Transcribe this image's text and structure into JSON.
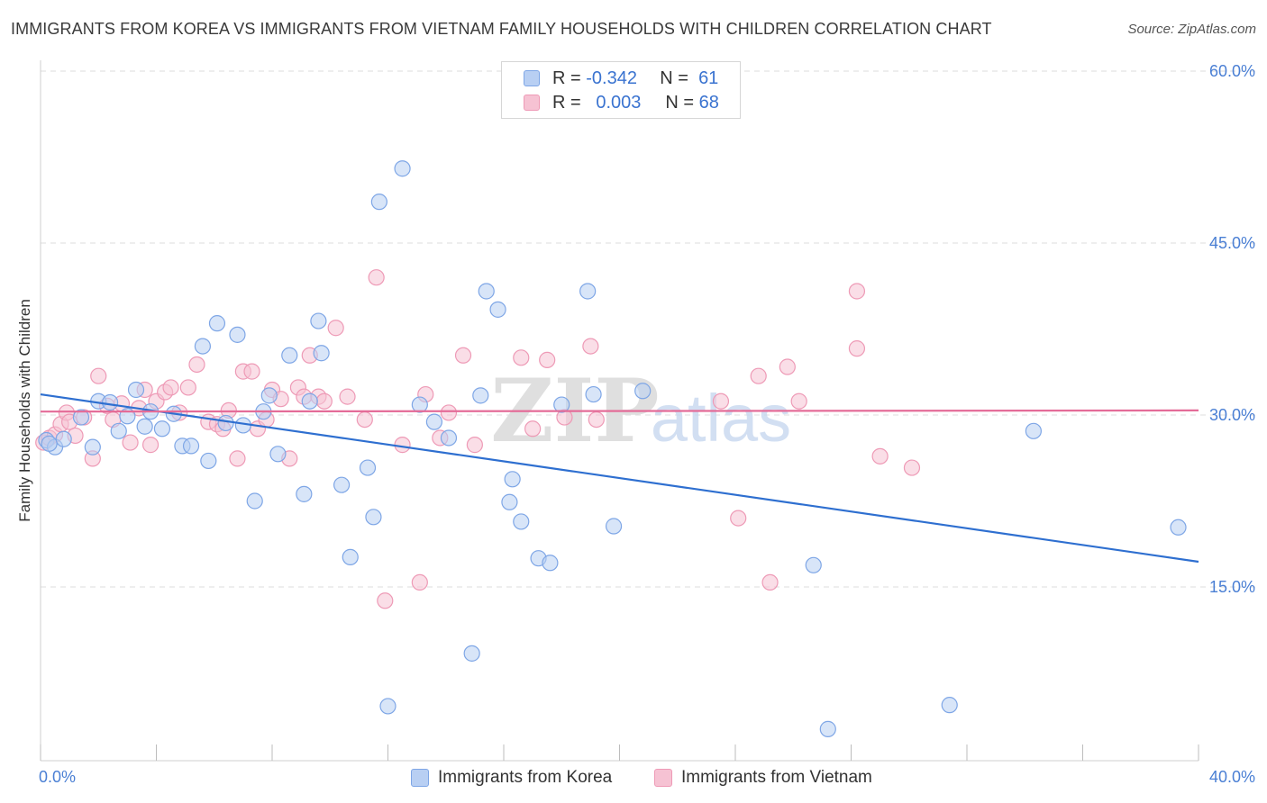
{
  "title": "IMMIGRANTS FROM KOREA VS IMMIGRANTS FROM VIETNAM FAMILY HOUSEHOLDS WITH CHILDREN CORRELATION CHART",
  "source": "Source: ZipAtlas.com",
  "watermark": {
    "zip": "ZIP",
    "atlas": "atlas"
  },
  "legend": {
    "korea": {
      "r_label": "R =",
      "r_value": "-0.342",
      "n_label": "N =",
      "n_value": "61"
    },
    "vietnam": {
      "r_label": "R =",
      "r_value": "0.003",
      "n_label": "N =",
      "n_value": "68"
    }
  },
  "bottom_legend": {
    "korea": "Immigrants from Korea",
    "vietnam": "Immigrants from Vietnam"
  },
  "colors": {
    "korea_fill": "#b8cff3",
    "korea_stroke": "#7ea6e6",
    "korea_line": "#2e6fd0",
    "vietnam_fill": "#f6c2d3",
    "vietnam_stroke": "#ee9ab6",
    "vietnam_line": "#e46c98",
    "tick_text": "#4a7fd4",
    "grid": "#dcdcdc"
  },
  "chart_data": {
    "type": "scatter",
    "title": "IMMIGRANTS FROM KOREA VS IMMIGRANTS FROM VIETNAM FAMILY HOUSEHOLDS WITH CHILDREN CORRELATION CHART",
    "xlabel": "",
    "ylabel": "Family Households with Children",
    "xlim": [
      0,
      40
    ],
    "ylim": [
      0,
      60
    ],
    "x_tick_labels": [
      "0.0%",
      "40.0%"
    ],
    "y_ticks": [
      15,
      30,
      45,
      60
    ],
    "y_tick_labels": [
      "15.0%",
      "30.0%",
      "45.0%",
      "60.0%"
    ],
    "grid": true,
    "legend_position": "top-center",
    "series": [
      {
        "name": "Immigrants from Korea",
        "trend": {
          "x": [
            0,
            40
          ],
          "y": [
            31.8,
            17.2
          ]
        },
        "points": [
          [
            0.2,
            27.8
          ],
          [
            0.5,
            27.2
          ],
          [
            0.8,
            27.9
          ],
          [
            1.4,
            29.8
          ],
          [
            1.8,
            27.2
          ],
          [
            2.0,
            31.2
          ],
          [
            2.4,
            31.1
          ],
          [
            2.7,
            28.6
          ],
          [
            3.0,
            29.9
          ],
          [
            3.3,
            32.2
          ],
          [
            3.6,
            29.0
          ],
          [
            3.8,
            30.3
          ],
          [
            4.2,
            28.8
          ],
          [
            4.6,
            30.1
          ],
          [
            4.9,
            27.3
          ],
          [
            5.2,
            27.3
          ],
          [
            5.6,
            36.0
          ],
          [
            5.8,
            26.0
          ],
          [
            6.1,
            38.0
          ],
          [
            6.4,
            29.3
          ],
          [
            6.8,
            37.0
          ],
          [
            7.0,
            29.1
          ],
          [
            7.4,
            22.5
          ],
          [
            7.7,
            30.3
          ],
          [
            7.9,
            31.7
          ],
          [
            8.2,
            26.6
          ],
          [
            8.6,
            35.2
          ],
          [
            9.1,
            23.1
          ],
          [
            9.3,
            31.2
          ],
          [
            9.6,
            38.2
          ],
          [
            9.7,
            35.4
          ],
          [
            10.4,
            23.9
          ],
          [
            10.7,
            17.6
          ],
          [
            11.3,
            25.4
          ],
          [
            11.5,
            21.1
          ],
          [
            11.7,
            48.6
          ],
          [
            12.0,
            4.6
          ],
          [
            12.5,
            51.5
          ],
          [
            13.1,
            30.9
          ],
          [
            13.6,
            29.4
          ],
          [
            14.1,
            28.0
          ],
          [
            14.9,
            9.2
          ],
          [
            15.2,
            31.7
          ],
          [
            15.4,
            40.8
          ],
          [
            15.8,
            39.2
          ],
          [
            16.2,
            22.4
          ],
          [
            16.3,
            24.4
          ],
          [
            16.6,
            20.7
          ],
          [
            17.2,
            17.5
          ],
          [
            17.6,
            17.1
          ],
          [
            18.0,
            30.9
          ],
          [
            18.9,
            40.8
          ],
          [
            19.1,
            31.8
          ],
          [
            19.8,
            20.3
          ],
          [
            20.8,
            32.1
          ],
          [
            26.7,
            16.9
          ],
          [
            27.2,
            2.6
          ],
          [
            31.4,
            4.7
          ],
          [
            34.3,
            28.6
          ],
          [
            39.3,
            20.2
          ],
          [
            0.3,
            27.5
          ]
        ]
      },
      {
        "name": "Immigrants from Vietnam",
        "trend": {
          "x": [
            0,
            40
          ],
          "y": [
            30.3,
            30.4
          ]
        },
        "points": [
          [
            0.1,
            27.6
          ],
          [
            0.3,
            28.0
          ],
          [
            0.5,
            28.3
          ],
          [
            0.7,
            29.2
          ],
          [
            0.9,
            30.2
          ],
          [
            1.0,
            29.4
          ],
          [
            1.2,
            28.2
          ],
          [
            1.5,
            29.8
          ],
          [
            1.8,
            26.2
          ],
          [
            2.0,
            33.4
          ],
          [
            2.3,
            30.8
          ],
          [
            2.5,
            29.6
          ],
          [
            2.8,
            31.0
          ],
          [
            3.1,
            27.6
          ],
          [
            3.4,
            30.6
          ],
          [
            3.6,
            32.2
          ],
          [
            3.8,
            27.4
          ],
          [
            4.0,
            31.2
          ],
          [
            4.3,
            32.0
          ],
          [
            4.5,
            32.4
          ],
          [
            4.8,
            30.2
          ],
          [
            5.1,
            32.4
          ],
          [
            5.4,
            34.4
          ],
          [
            5.8,
            29.4
          ],
          [
            6.1,
            29.2
          ],
          [
            6.3,
            28.8
          ],
          [
            6.5,
            30.4
          ],
          [
            6.8,
            26.2
          ],
          [
            7.0,
            33.8
          ],
          [
            7.3,
            33.8
          ],
          [
            7.5,
            28.8
          ],
          [
            7.8,
            29.6
          ],
          [
            8.0,
            32.2
          ],
          [
            8.3,
            31.4
          ],
          [
            8.6,
            26.2
          ],
          [
            8.9,
            32.4
          ],
          [
            9.1,
            31.6
          ],
          [
            9.3,
            35.2
          ],
          [
            9.6,
            31.6
          ],
          [
            9.8,
            31.2
          ],
          [
            10.2,
            37.6
          ],
          [
            10.6,
            31.6
          ],
          [
            11.2,
            29.6
          ],
          [
            11.6,
            42.0
          ],
          [
            11.9,
            13.8
          ],
          [
            12.5,
            27.4
          ],
          [
            13.1,
            15.4
          ],
          [
            13.3,
            31.8
          ],
          [
            13.8,
            28.0
          ],
          [
            14.1,
            30.2
          ],
          [
            14.6,
            35.2
          ],
          [
            15.0,
            27.4
          ],
          [
            16.6,
            35.0
          ],
          [
            17.0,
            28.8
          ],
          [
            17.5,
            34.8
          ],
          [
            18.1,
            29.8
          ],
          [
            19.0,
            36.0
          ],
          [
            19.2,
            29.6
          ],
          [
            23.5,
            31.2
          ],
          [
            24.1,
            21.0
          ],
          [
            24.8,
            33.4
          ],
          [
            25.2,
            15.4
          ],
          [
            25.8,
            34.2
          ],
          [
            26.2,
            31.2
          ],
          [
            28.2,
            40.8
          ],
          [
            28.2,
            35.8
          ],
          [
            29.0,
            26.4
          ],
          [
            30.1,
            25.4
          ]
        ]
      }
    ]
  }
}
